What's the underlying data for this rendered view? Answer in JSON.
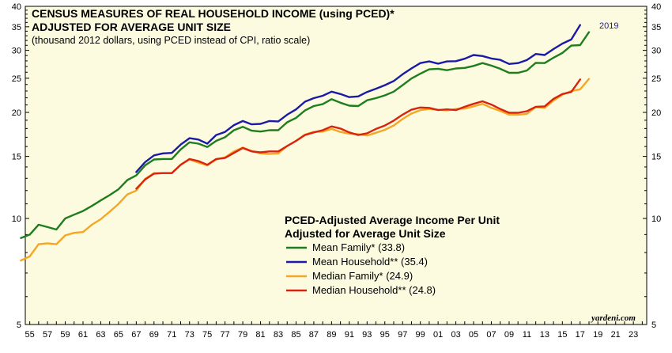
{
  "chart_data": {
    "type": "line",
    "title_line1": "CENSUS MEASURES OF REAL HOUSEHOLD INCOME (using PCED)*",
    "title_line2": "ADJUSTED FOR AVERAGE UNIT SIZE",
    "subtitle": "(thousand 2012 dollars, using PCED instead of CPI, ratio scale)",
    "legend_title_line1": "PCED-Adjusted Average Income Per Unit",
    "legend_title_line2": "Adjusted for Average Unit Size",
    "legend_placement": "lower-center",
    "watermark": "yardeni.com",
    "end_label": "2019",
    "scale": "log",
    "ylim": [
      5,
      40
    ],
    "xlim": [
      1954.5,
      2024.5
    ],
    "y_ticks": [
      5,
      10,
      15,
      20,
      25,
      30,
      35,
      40
    ],
    "x_ticks": [
      "55",
      "57",
      "59",
      "61",
      "63",
      "65",
      "67",
      "69",
      "71",
      "73",
      "75",
      "77",
      "79",
      "81",
      "83",
      "85",
      "87",
      "89",
      "91",
      "93",
      "95",
      "97",
      "99",
      "01",
      "03",
      "05",
      "07",
      "09",
      "11",
      "13",
      "15",
      "17",
      "19",
      "21",
      "23"
    ],
    "colors": {
      "background": "#fdfbdf",
      "mean_family": "#1e7d1e",
      "mean_household": "#1a1aa8",
      "median_family": "#f5a623",
      "median_household": "#d8230f",
      "end_label": "#1a1aa8"
    },
    "series": [
      {
        "name": "Mean Family* (33.8)",
        "key": "mean_family",
        "start_year": 1954,
        "values": [
          8.8,
          9.0,
          9.6,
          9.45,
          9.3,
          10.0,
          10.25,
          10.5,
          10.85,
          11.25,
          11.65,
          12.1,
          12.85,
          13.25,
          14.15,
          14.7,
          14.75,
          14.75,
          15.7,
          16.45,
          16.3,
          15.95,
          16.6,
          17.0,
          17.8,
          18.2,
          17.75,
          17.65,
          17.8,
          17.8,
          18.75,
          19.3,
          20.25,
          20.85,
          21.1,
          21.8,
          21.3,
          20.9,
          20.85,
          21.65,
          21.95,
          22.35,
          22.9,
          23.9,
          24.95,
          25.75,
          26.5,
          26.6,
          26.35,
          26.65,
          26.75,
          27.1,
          27.6,
          27.15,
          26.6,
          25.9,
          25.9,
          26.3,
          27.65,
          27.6,
          28.6,
          29.5,
          30.95,
          31.05,
          33.8
        ]
      },
      {
        "name": "Mean Household** (35.4)",
        "key": "mean_household",
        "start_year": 1967,
        "values": [
          13.55,
          14.45,
          15.1,
          15.3,
          15.35,
          16.2,
          16.9,
          16.75,
          16.3,
          17.25,
          17.6,
          18.4,
          18.9,
          18.5,
          18.55,
          18.9,
          18.85,
          19.7,
          20.4,
          21.45,
          21.95,
          22.3,
          22.9,
          22.55,
          22.1,
          22.2,
          22.85,
          23.35,
          23.9,
          24.55,
          25.65,
          26.65,
          27.6,
          27.9,
          27.5,
          27.9,
          27.95,
          28.4,
          29.1,
          28.9,
          28.45,
          28.2,
          27.45,
          27.6,
          28.15,
          29.3,
          29.1,
          30.25,
          31.35,
          32.2,
          35.4
        ]
      },
      {
        "name": "Median Family* (24.9)",
        "key": "median_family",
        "start_year": 1954,
        "values": [
          7.6,
          7.8,
          8.45,
          8.5,
          8.45,
          8.95,
          9.1,
          9.15,
          9.6,
          9.95,
          10.45,
          11.0,
          11.7,
          12.0,
          12.95,
          13.45,
          13.45,
          13.45,
          14.2,
          14.7,
          14.4,
          14.15,
          14.7,
          14.9,
          15.5,
          15.9,
          15.55,
          15.3,
          15.25,
          15.3,
          16.05,
          16.6,
          17.3,
          17.6,
          17.65,
          17.95,
          17.6,
          17.4,
          17.35,
          17.2,
          17.5,
          17.85,
          18.35,
          19.15,
          19.85,
          20.3,
          20.45,
          20.35,
          20.25,
          20.45,
          20.5,
          20.8,
          21.15,
          20.6,
          20.2,
          19.7,
          19.7,
          19.8,
          20.7,
          20.6,
          21.6,
          22.45,
          23.0,
          23.25,
          24.9
        ]
      },
      {
        "name": "Median Household** (24.8)",
        "key": "median_household",
        "start_year": 1967,
        "values": [
          12.15,
          12.9,
          13.4,
          13.45,
          13.45,
          14.2,
          14.75,
          14.55,
          14.2,
          14.75,
          14.85,
          15.35,
          15.85,
          15.5,
          15.4,
          15.5,
          15.5,
          16.05,
          16.6,
          17.25,
          17.55,
          17.8,
          18.25,
          18.0,
          17.55,
          17.25,
          17.45,
          17.95,
          18.35,
          18.95,
          19.7,
          20.35,
          20.65,
          20.6,
          20.3,
          20.4,
          20.3,
          20.75,
          21.15,
          21.5,
          21.05,
          20.45,
          19.95,
          19.95,
          20.15,
          20.75,
          20.8,
          21.85,
          22.55,
          22.85,
          24.8
        ]
      }
    ]
  }
}
